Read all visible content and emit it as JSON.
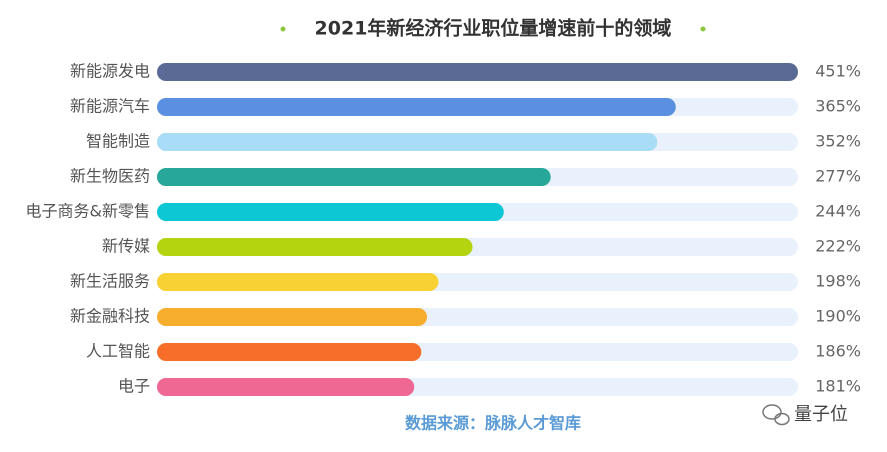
{
  "chart_data": {
    "type": "bar",
    "orientation": "horizontal",
    "title": "2021年新经济行业职位量增速前十的领域",
    "categories": [
      "新能源发电",
      "新能源汽车",
      "智能制造",
      "新生物医药",
      "电子商务&新零售",
      "新传媒",
      "新生活服务",
      "新金融科技",
      "人工智能",
      "电子"
    ],
    "values": [
      451,
      365,
      352,
      277,
      244,
      222,
      198,
      190,
      186,
      181
    ],
    "value_labels": [
      "451%",
      "365%",
      "352%",
      "277%",
      "244%",
      "222%",
      "198%",
      "190%",
      "186%",
      "181%"
    ],
    "colors": [
      "#5a6a94",
      "#5b8fe0",
      "#a9dcf6",
      "#27a799",
      "#0dc7d4",
      "#b3d40f",
      "#f8d132",
      "#f7ae2e",
      "#f76e2a",
      "#ee6893"
    ],
    "source": "数据来源：脉脉人才智库",
    "watermark": "量子位"
  }
}
